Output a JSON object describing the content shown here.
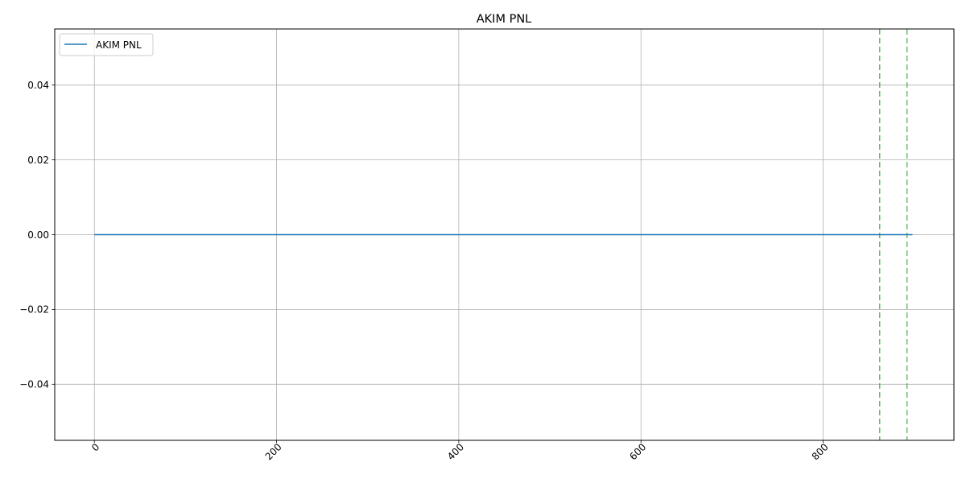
{
  "chart_data": {
    "type": "line",
    "title": "AKIM PNL",
    "xlabel": "",
    "ylabel": "",
    "xlim": [
      -43.5,
      943.5
    ],
    "ylim": [
      -0.055,
      0.055
    ],
    "grid": true,
    "legend_position": "upper-left",
    "x_ticks": [
      0,
      200,
      400,
      600,
      800
    ],
    "x_tick_labels": [
      "0",
      "200",
      "400",
      "600",
      "800"
    ],
    "x_tick_rotation": 45,
    "y_ticks": [
      -0.04,
      -0.02,
      0.0,
      0.02,
      0.04
    ],
    "y_tick_labels": [
      "−0.04",
      "−0.02",
      "0.00",
      "0.02",
      "0.04"
    ],
    "series": [
      {
        "name": "AKIM PNL",
        "color": "#1f77b4",
        "x": [
          0,
          898
        ],
        "y": [
          0.0,
          0.0
        ]
      }
    ],
    "vertical_markers": [
      {
        "x": 862,
        "color": "#2ca02c",
        "style": "dashed"
      },
      {
        "x": 892,
        "color": "#2ca02c",
        "style": "dashed"
      }
    ]
  }
}
